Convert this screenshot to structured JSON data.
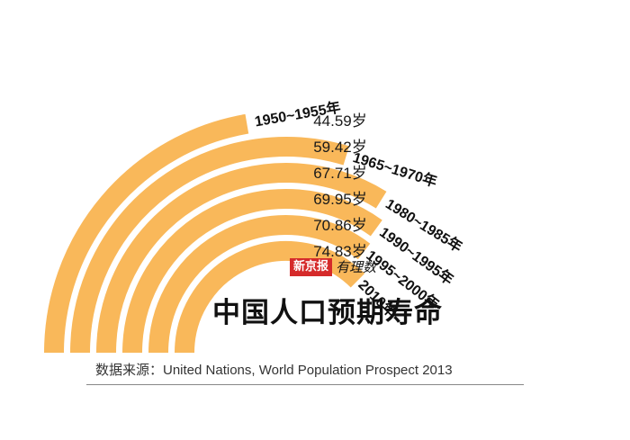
{
  "chart_data": {
    "type": "radial-bar",
    "title": "中国人口预期寿命",
    "brand": {
      "name": "新京报",
      "column": "有理数"
    },
    "source": "数据来源：United Nations, World Population Prospect 2013",
    "categories": [
      "1950~1955年",
      "1965~1970年",
      "1980~1985年",
      "1990~1995年",
      "1995~2000年",
      "2010年"
    ],
    "value_labels": [
      "44.59岁",
      "59.42岁",
      "67.71岁",
      "69.95岁",
      "70.86岁",
      "74.83岁"
    ],
    "values": [
      44.59,
      59.42,
      67.71,
      69.95,
      70.86,
      74.83
    ],
    "unit": "岁",
    "bar_color": "#f9b85a"
  }
}
